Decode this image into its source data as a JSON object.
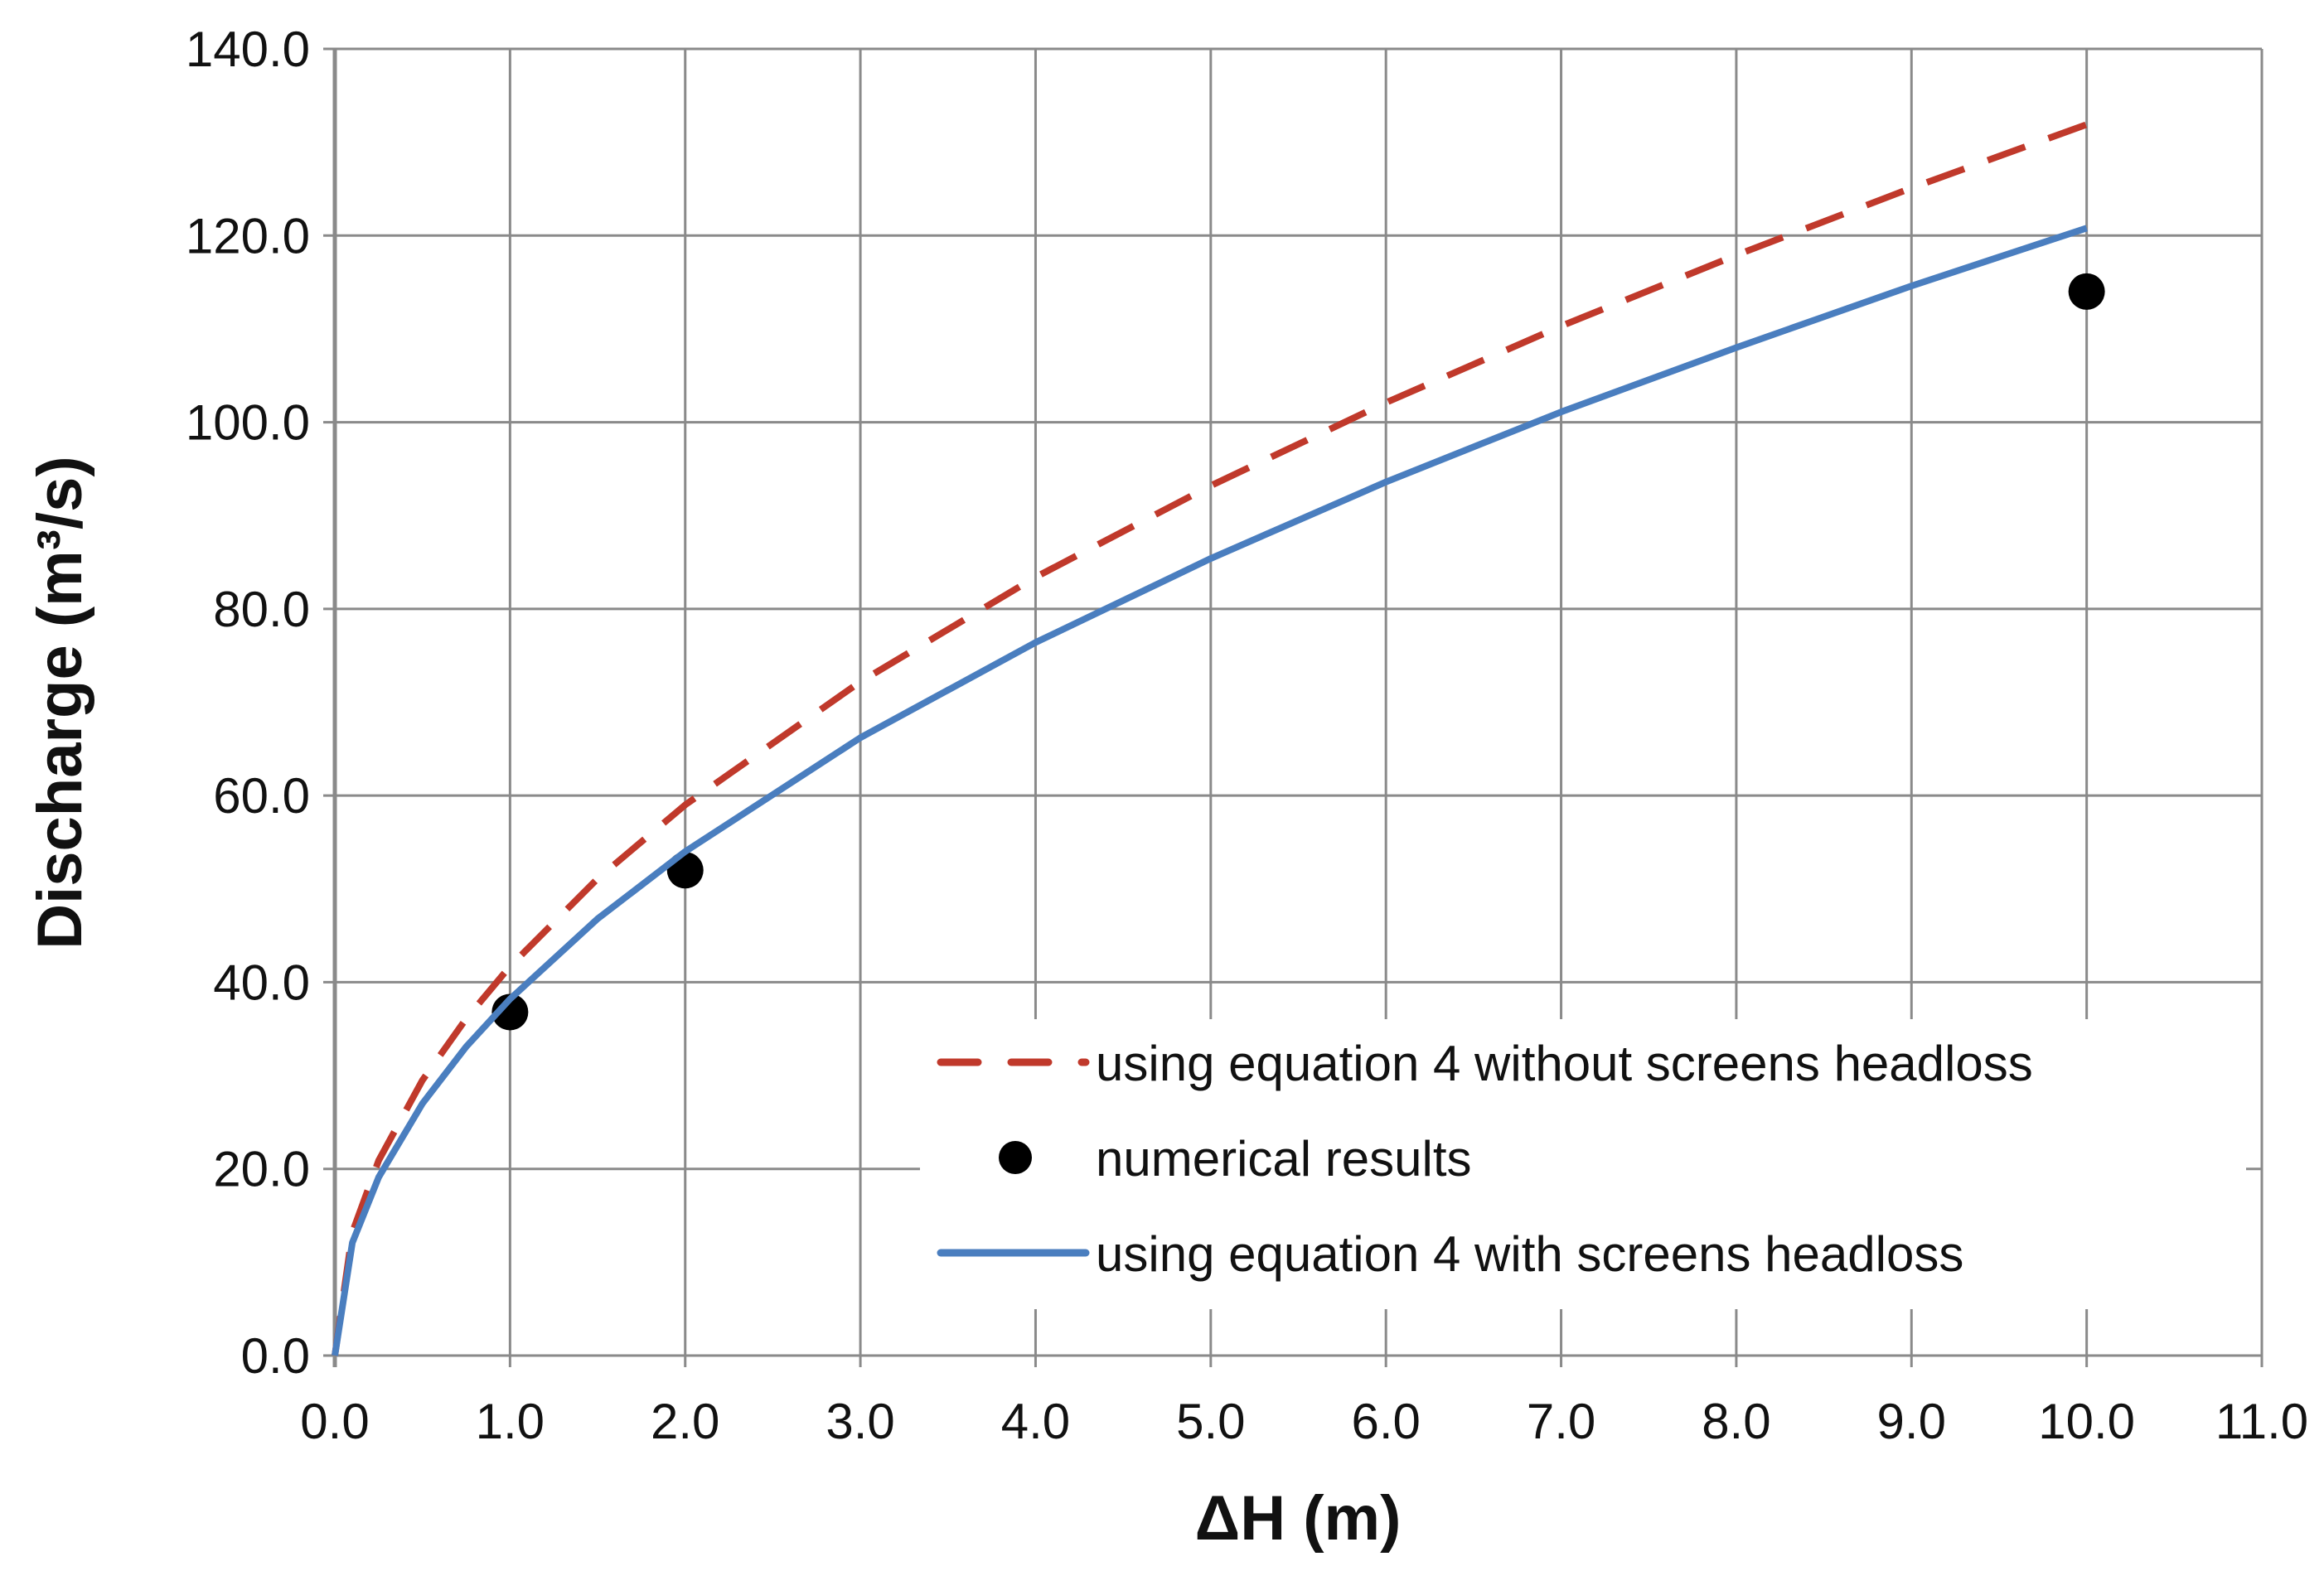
{
  "chart_data": {
    "type": "line",
    "title": "",
    "xlabel": "ΔH (m)",
    "ylabel": "Discharge (m³/s)",
    "xlim": [
      0,
      11
    ],
    "ylim": [
      0,
      140
    ],
    "grid": true,
    "legend_position": "bottom-right",
    "x_ticks": [
      "0.0",
      "1.0",
      "2.0",
      "3.0",
      "4.0",
      "5.0",
      "6.0",
      "7.0",
      "8.0",
      "9.0",
      "10.0",
      "11.0"
    ],
    "y_ticks": [
      "0.0",
      "20.0",
      "40.0",
      "60.0",
      "80.0",
      "100.0",
      "120.0",
      "140.0"
    ],
    "series": [
      {
        "name": "using equation 4 without screens headloss",
        "style": "dashed",
        "color": "#c0392b",
        "x": [
          0,
          0.1,
          0.25,
          0.5,
          0.75,
          1,
          1.5,
          2,
          3,
          4,
          5,
          6,
          7,
          8,
          9,
          10
        ],
        "y": [
          0,
          13.2,
          20.9,
          29.5,
          36.1,
          41.7,
          51.1,
          59.0,
          72.2,
          83.4,
          93.2,
          102.1,
          110.3,
          117.9,
          125.1,
          131.9
        ]
      },
      {
        "name": "numerical results",
        "style": "markers",
        "color": "#000000",
        "x": [
          1,
          2,
          10
        ],
        "y": [
          36.8,
          52.0,
          114.0
        ]
      },
      {
        "name": "using equation 4 with screens headloss",
        "style": "solid",
        "color": "#4a7ebf",
        "x": [
          0,
          0.1,
          0.25,
          0.5,
          0.75,
          1,
          1.5,
          2,
          3,
          4,
          5,
          6,
          7,
          8,
          9,
          10
        ],
        "y": [
          0,
          12.1,
          19.1,
          27.0,
          33.1,
          38.2,
          46.8,
          54.0,
          66.2,
          76.4,
          85.4,
          93.6,
          101.1,
          108.0,
          114.6,
          120.8
        ]
      }
    ]
  }
}
